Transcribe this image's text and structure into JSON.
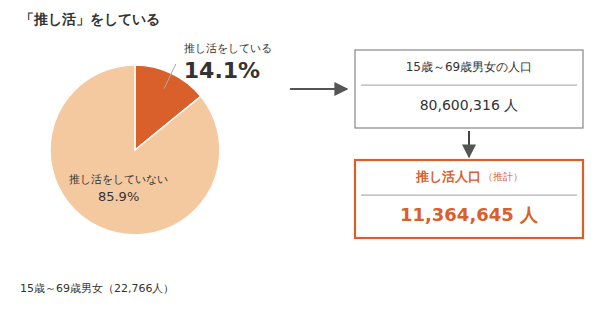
{
  "chart_data": {
    "type": "pie",
    "title": "「推し活」をしている",
    "categories": [
      "推し活をしている",
      "推し活をしていない"
    ],
    "values": [
      14.1,
      85.9
    ],
    "value_labels": [
      "14.1%",
      "85.9%"
    ],
    "colors": [
      "#d95f2b",
      "#f5c9a0"
    ],
    "data_labels": true,
    "annotations": [
      "15歳～69歳男女（22,766人）",
      "15歳～69歳男女の人口",
      "80,600,316 人",
      "推し活人口",
      "（推計）",
      "11,364,645 人"
    ]
  }
}
